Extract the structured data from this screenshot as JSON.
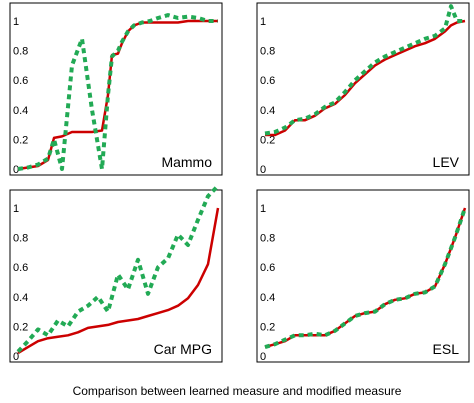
{
  "caption": "Comparison between learned measure and modified measure",
  "colors": {
    "learned": "#cc0000",
    "modified": "#22aa55"
  },
  "chart_data": [
    {
      "type": "line",
      "label": "Mammo",
      "ylim": [
        0,
        1
      ],
      "yticks": [
        "0",
        "0.2",
        "0.4",
        "0.6",
        "0.8",
        "1"
      ],
      "x": [
        0,
        0.05,
        0.1,
        0.15,
        0.18,
        0.22,
        0.27,
        0.32,
        0.37,
        0.42,
        0.45,
        0.47,
        0.5,
        0.52,
        0.55,
        0.58,
        0.62,
        0.66,
        0.7,
        0.75,
        0.8,
        0.85,
        0.9,
        0.95,
        1.0
      ],
      "series": [
        {
          "key": "learned",
          "style": "solid",
          "values": [
            0.0,
            0.01,
            0.02,
            0.06,
            0.21,
            0.22,
            0.25,
            0.25,
            0.25,
            0.26,
            0.5,
            0.77,
            0.78,
            0.85,
            0.93,
            0.97,
            0.99,
            0.99,
            0.99,
            0.99,
            0.99,
            1.0,
            1.0,
            1.0,
            1.0
          ]
        },
        {
          "key": "modified",
          "style": "dashed",
          "values": [
            0.0,
            0.01,
            0.03,
            0.07,
            0.2,
            0.0,
            0.7,
            0.88,
            0.4,
            0.0,
            0.5,
            0.76,
            0.8,
            0.86,
            0.93,
            0.97,
            0.99,
            1.0,
            1.02,
            1.04,
            1.02,
            1.03,
            1.02,
            1.0,
            1.0
          ]
        }
      ]
    },
    {
      "type": "line",
      "label": "LEV",
      "ylim": [
        0,
        1
      ],
      "yticks": [
        "0",
        "0.2",
        "0.4",
        "0.6",
        "0.8",
        "1"
      ],
      "x": [
        0,
        0.05,
        0.1,
        0.15,
        0.2,
        0.25,
        0.3,
        0.35,
        0.4,
        0.45,
        0.5,
        0.55,
        0.6,
        0.65,
        0.7,
        0.75,
        0.8,
        0.85,
        0.9,
        0.93,
        0.96,
        1.0
      ],
      "series": [
        {
          "key": "learned",
          "style": "solid",
          "values": [
            0.23,
            0.23,
            0.26,
            0.33,
            0.33,
            0.36,
            0.41,
            0.44,
            0.5,
            0.58,
            0.64,
            0.7,
            0.74,
            0.77,
            0.8,
            0.83,
            0.85,
            0.88,
            0.93,
            0.97,
            0.99,
            1.0
          ]
        },
        {
          "key": "modified",
          "style": "dashed",
          "values": [
            0.24,
            0.25,
            0.28,
            0.33,
            0.34,
            0.37,
            0.42,
            0.45,
            0.52,
            0.6,
            0.66,
            0.72,
            0.76,
            0.79,
            0.82,
            0.85,
            0.88,
            0.9,
            0.95,
            1.1,
            1.0,
            1.0
          ]
        }
      ]
    },
    {
      "type": "line",
      "label": "Car MPG",
      "ylim": [
        0,
        1
      ],
      "yticks": [
        "0",
        "0.2",
        "0.4",
        "0.6",
        "0.8",
        "1"
      ],
      "x": [
        0,
        0.05,
        0.1,
        0.15,
        0.2,
        0.25,
        0.3,
        0.35,
        0.4,
        0.45,
        0.5,
        0.55,
        0.6,
        0.65,
        0.7,
        0.75,
        0.8,
        0.85,
        0.9,
        0.95,
        1.0
      ],
      "series": [
        {
          "key": "learned",
          "style": "solid",
          "values": [
            0.02,
            0.06,
            0.1,
            0.12,
            0.13,
            0.14,
            0.16,
            0.19,
            0.2,
            0.21,
            0.23,
            0.24,
            0.25,
            0.27,
            0.29,
            0.31,
            0.34,
            0.39,
            0.48,
            0.62,
            1.0
          ]
        },
        {
          "key": "modified",
          "style": "dashed",
          "values": [
            0.03,
            0.1,
            0.18,
            0.14,
            0.24,
            0.2,
            0.3,
            0.34,
            0.4,
            0.3,
            0.55,
            0.45,
            0.65,
            0.42,
            0.6,
            0.66,
            0.82,
            0.75,
            0.92,
            1.08,
            1.15
          ]
        }
      ]
    },
    {
      "type": "line",
      "label": "ESL",
      "ylim": [
        0,
        1
      ],
      "yticks": [
        "0",
        "0.2",
        "0.4",
        "0.6",
        "0.8",
        "1"
      ],
      "x": [
        0,
        0.05,
        0.1,
        0.15,
        0.2,
        0.25,
        0.3,
        0.35,
        0.4,
        0.45,
        0.5,
        0.55,
        0.6,
        0.65,
        0.7,
        0.75,
        0.8,
        0.85,
        0.9,
        0.95,
        1.0
      ],
      "series": [
        {
          "key": "learned",
          "style": "solid",
          "values": [
            0.06,
            0.08,
            0.1,
            0.14,
            0.14,
            0.14,
            0.14,
            0.17,
            0.22,
            0.27,
            0.29,
            0.3,
            0.35,
            0.38,
            0.39,
            0.42,
            0.43,
            0.47,
            0.62,
            0.8,
            1.0
          ]
        },
        {
          "key": "modified",
          "style": "dashed",
          "values": [
            0.06,
            0.08,
            0.11,
            0.14,
            0.14,
            0.15,
            0.14,
            0.17,
            0.22,
            0.27,
            0.29,
            0.3,
            0.35,
            0.38,
            0.39,
            0.42,
            0.43,
            0.47,
            0.62,
            0.8,
            1.0
          ]
        }
      ]
    }
  ]
}
